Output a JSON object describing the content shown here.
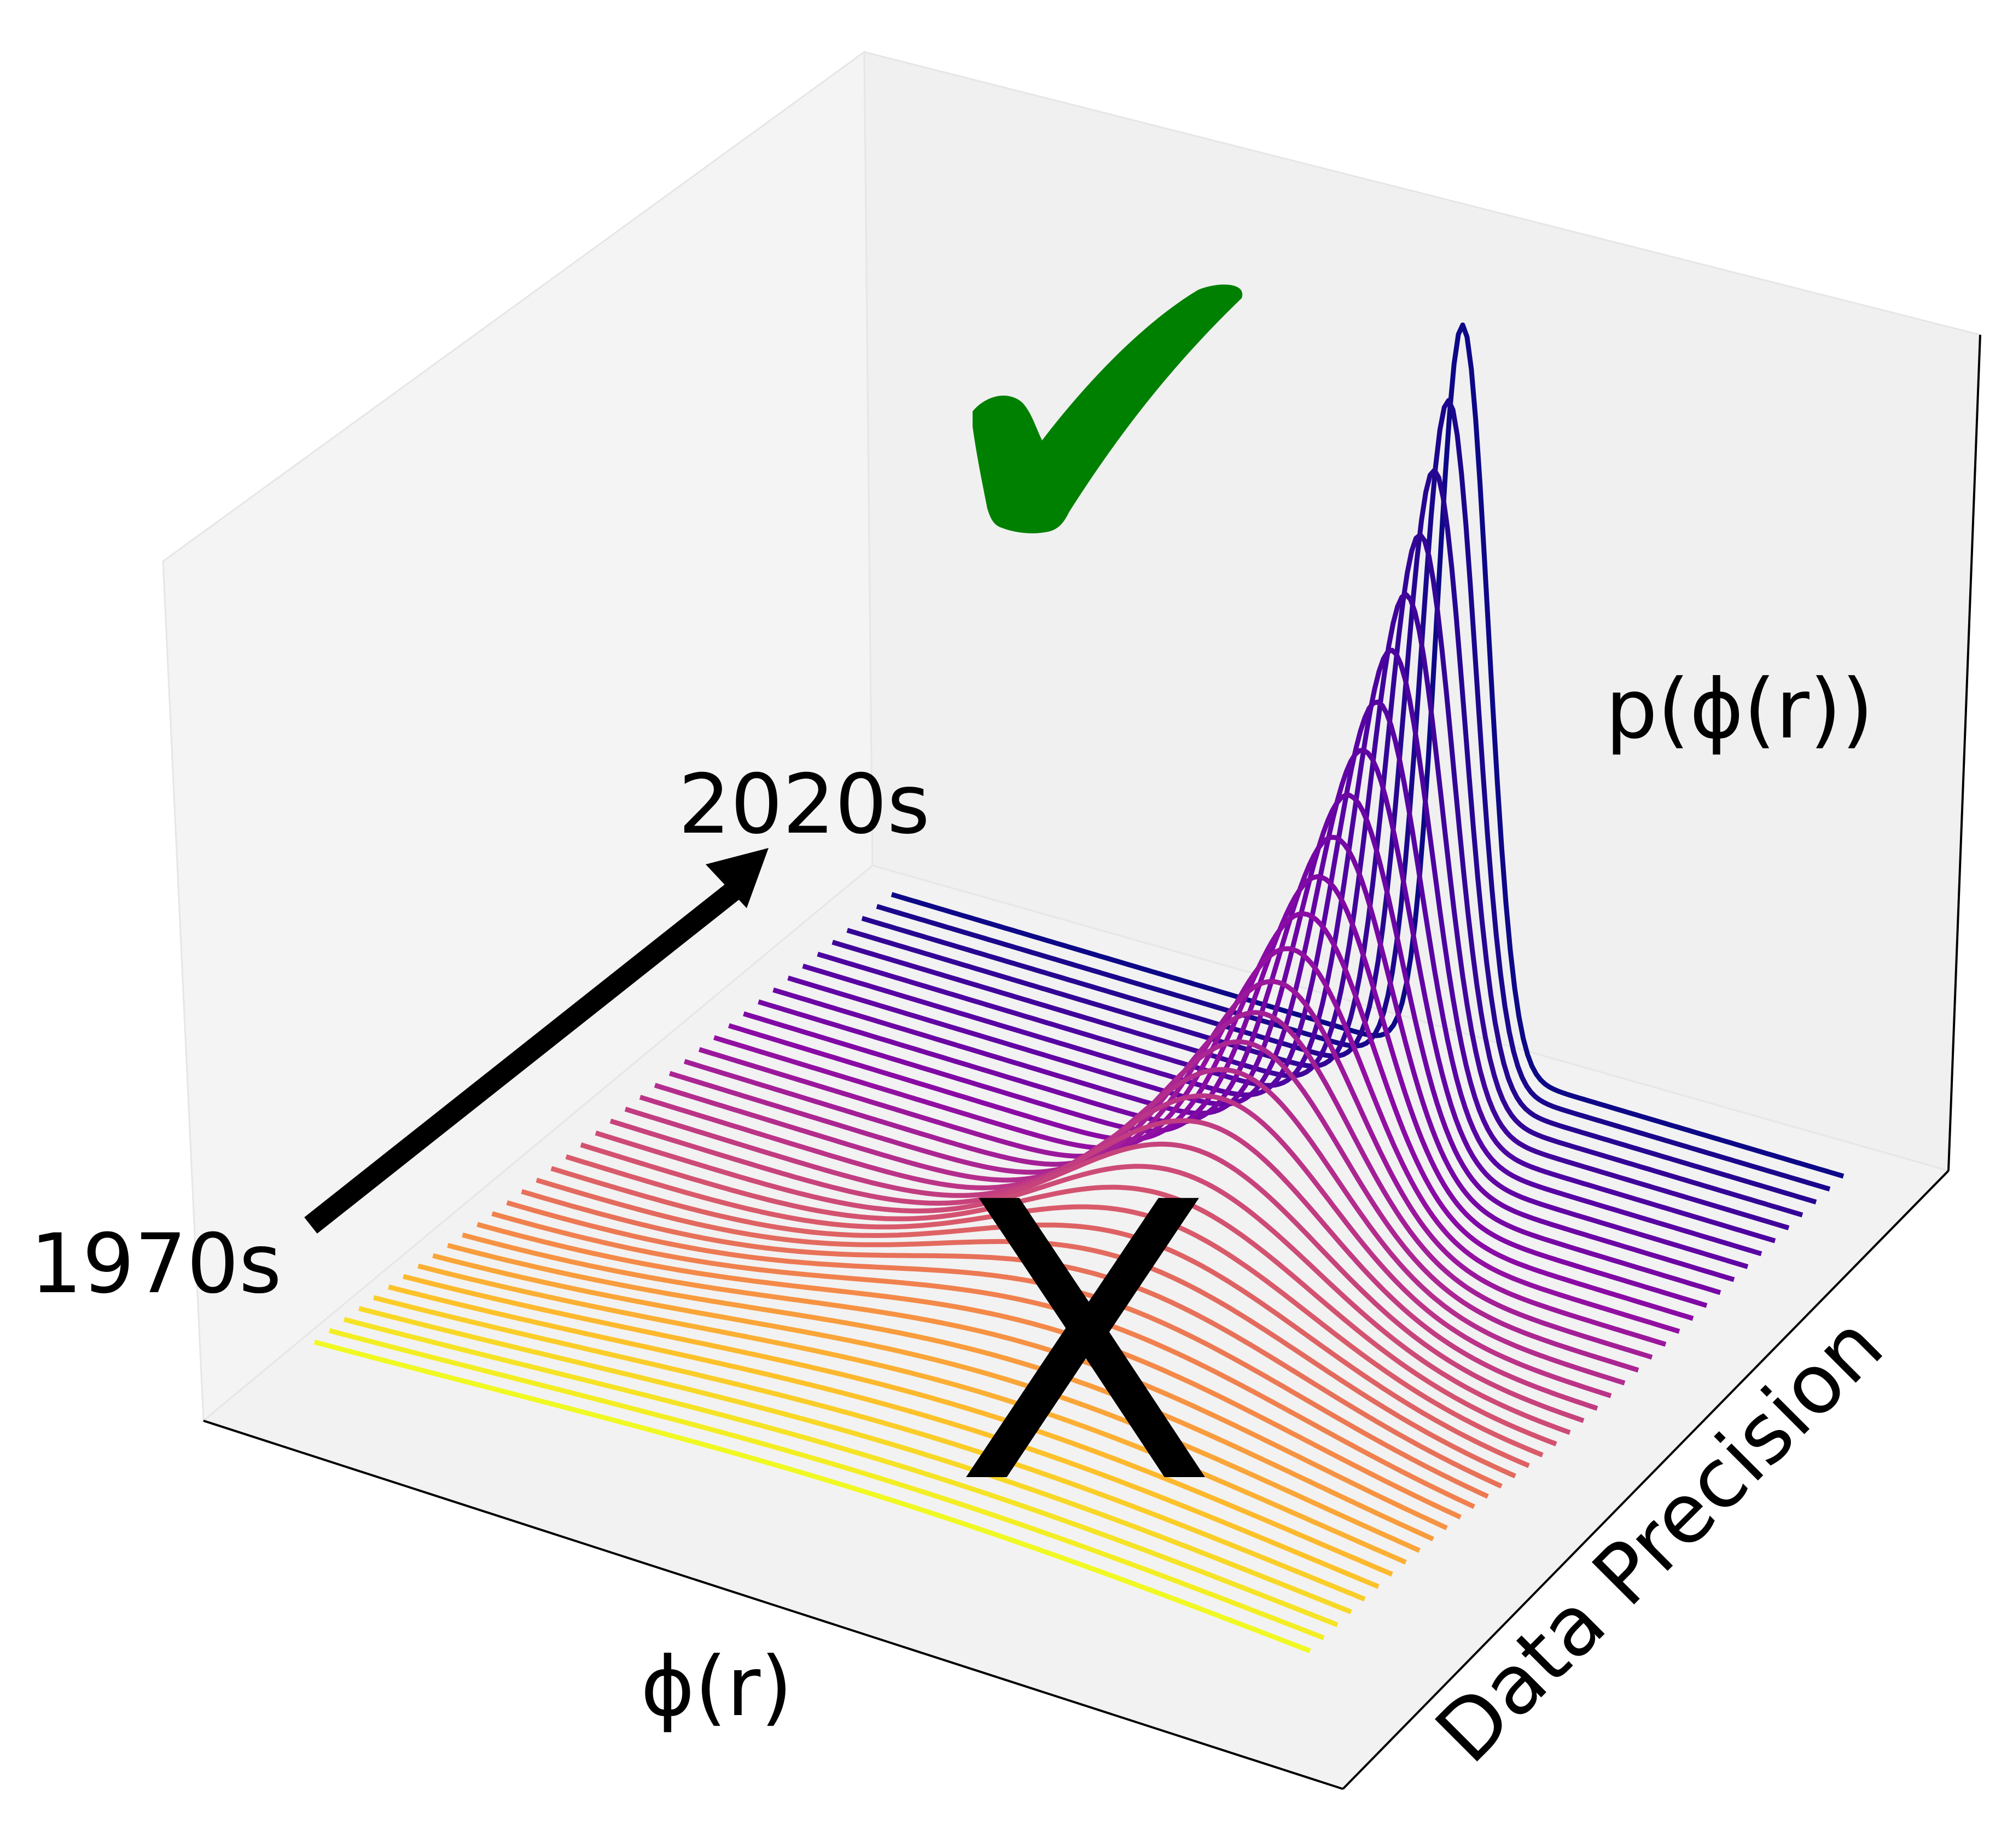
{
  "chart_data": {
    "type": "line",
    "projection": "3d",
    "title": "",
    "xlabel": "ϕ(r)",
    "ylabel": "Data Precision",
    "zlabel": "p(ϕ(r))",
    "axis_ticks": "none",
    "grid": false,
    "colormap": "plasma",
    "series_count": 40,
    "series_from": "1970s",
    "series_to": "2020s",
    "description_of_series": "Gaussian-like probability curves p(phi(r)) over phi(r); spread narrows and peak rises from the 1970s (yellow, broad) to the 2020s (dark blue, sharp)",
    "x_range": [
      -3,
      3
    ],
    "peak_center": 0.6,
    "sigma_broad": 2.6,
    "sigma_sharp": 0.16,
    "annotations": [
      {
        "text": "1970s",
        "role": "start-of-arrow"
      },
      {
        "text": "2020s",
        "role": "end-of-arrow"
      },
      {
        "text": "✔",
        "role": "check-mark",
        "color": "#008000"
      },
      {
        "text": "X",
        "role": "cross-mark",
        "color": "#ff0000"
      }
    ],
    "colors": {
      "pane_back": "#f0f0f0",
      "pane_side": "#f4f4f4",
      "pane_floor": "#f2f2f2",
      "arrow": "#000000"
    }
  }
}
